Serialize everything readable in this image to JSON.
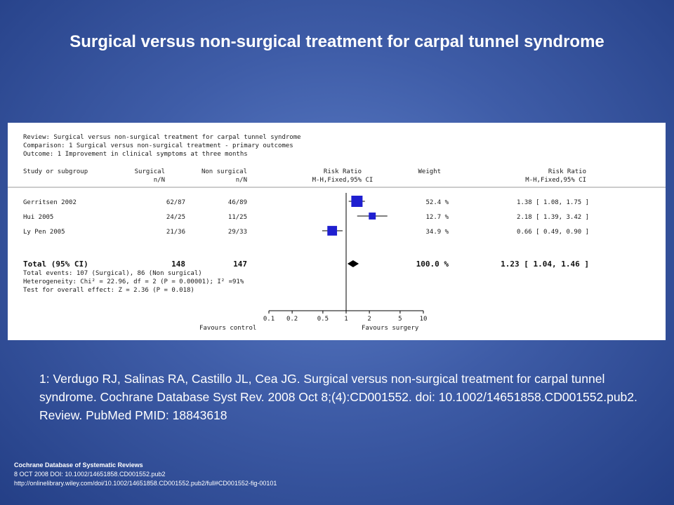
{
  "slide": {
    "title": "Surgical versus non-surgical treatment for carpal tunnel syndrome",
    "citation": "1: Verdugo RJ, Salinas RA, Castillo JL, Cea JG. Surgical versus non-surgical treatment for carpal tunnel syndrome. Cochrane Database Syst Rev. 2008 Oct 8;(4):CD001552. doi: 10.1002/14651858.CD001552.pub2. Review. PubMed PMID: 18843618",
    "source": {
      "journal": "Cochrane Database of Systematic Reviews",
      "date_doi": "8 OCT 2008 DOI: 10.1002/14651858.CD001552.pub2",
      "url": "http://onlinelibrary.wiley.com/doi/10.1002/14651858.CD001552.pub2/full#CD001552-fig-00101"
    }
  },
  "chart_data": {
    "type": "forest",
    "header": {
      "review": "Review:  Surgical versus non-surgical treatment for carpal tunnel syndrome",
      "comparison": "Comparison:  1 Surgical versus non-surgical treatment - primary outcomes",
      "outcome": "Outcome:  1 Improvement in clinical symptoms at three months"
    },
    "columns": {
      "study": "Study or subgroup",
      "surgical": "Surgical",
      "surgical_sub": "n/N",
      "nonsurgical": "Non surgical",
      "nonsurgical_sub": "n/N",
      "rr_plot": "Risk Ratio",
      "rr_plot_sub": "M-H,Fixed,95% CI",
      "weight": "Weight",
      "rr": "Risk Ratio",
      "rr_sub": "M-H,Fixed,95% CI"
    },
    "studies": [
      {
        "name": "Gerritsen 2002",
        "surgical": "62/87",
        "nonsurgical": "46/89",
        "weight_label": "52.4 %",
        "weight": 52.4,
        "rr": 1.38,
        "ci": [
          1.08,
          1.75
        ],
        "rr_label": "1.38 [ 1.08, 1.75 ]"
      },
      {
        "name": "Hui 2005",
        "surgical": "24/25",
        "nonsurgical": "11/25",
        "weight_label": "12.7 %",
        "weight": 12.7,
        "rr": 2.18,
        "ci": [
          1.39,
          3.42
        ],
        "rr_label": "2.18 [ 1.39, 3.42 ]"
      },
      {
        "name": "Ly Pen 2005",
        "surgical": "21/36",
        "nonsurgical": "29/33",
        "weight_label": "34.9 %",
        "weight": 34.9,
        "rr": 0.66,
        "ci": [
          0.49,
          0.9
        ],
        "rr_label": "0.66 [ 0.49, 0.90 ]"
      }
    ],
    "total": {
      "name": "Total (95% CI)",
      "surgical": "148",
      "nonsurgical": "147",
      "weight_label": "100.0 %",
      "rr": 1.23,
      "ci": [
        1.04,
        1.46
      ],
      "rr_label": "1.23 [ 1.04, 1.46 ]"
    },
    "footnotes": [
      "Total events: 107 (Surgical), 86 (Non surgical)",
      "Heterogeneity: Chi² = 22.96, df = 2 (P = 0.00001); I² =91%",
      "Test for overall effect: Z = 2.36 (P = 0.018)"
    ],
    "x_axis": {
      "scale": "log",
      "range": [
        0.1,
        10
      ],
      "ticks": [
        0.1,
        0.2,
        0.5,
        1,
        2,
        5,
        10
      ],
      "tick_labels": [
        "0.1",
        "0.2",
        "0.5",
        "1",
        "2",
        "5",
        "10"
      ],
      "left_label": "Favours control",
      "right_label": "Favours surgery"
    },
    "colors": {
      "marker": "#1f1fd0",
      "line": "#000000"
    }
  }
}
